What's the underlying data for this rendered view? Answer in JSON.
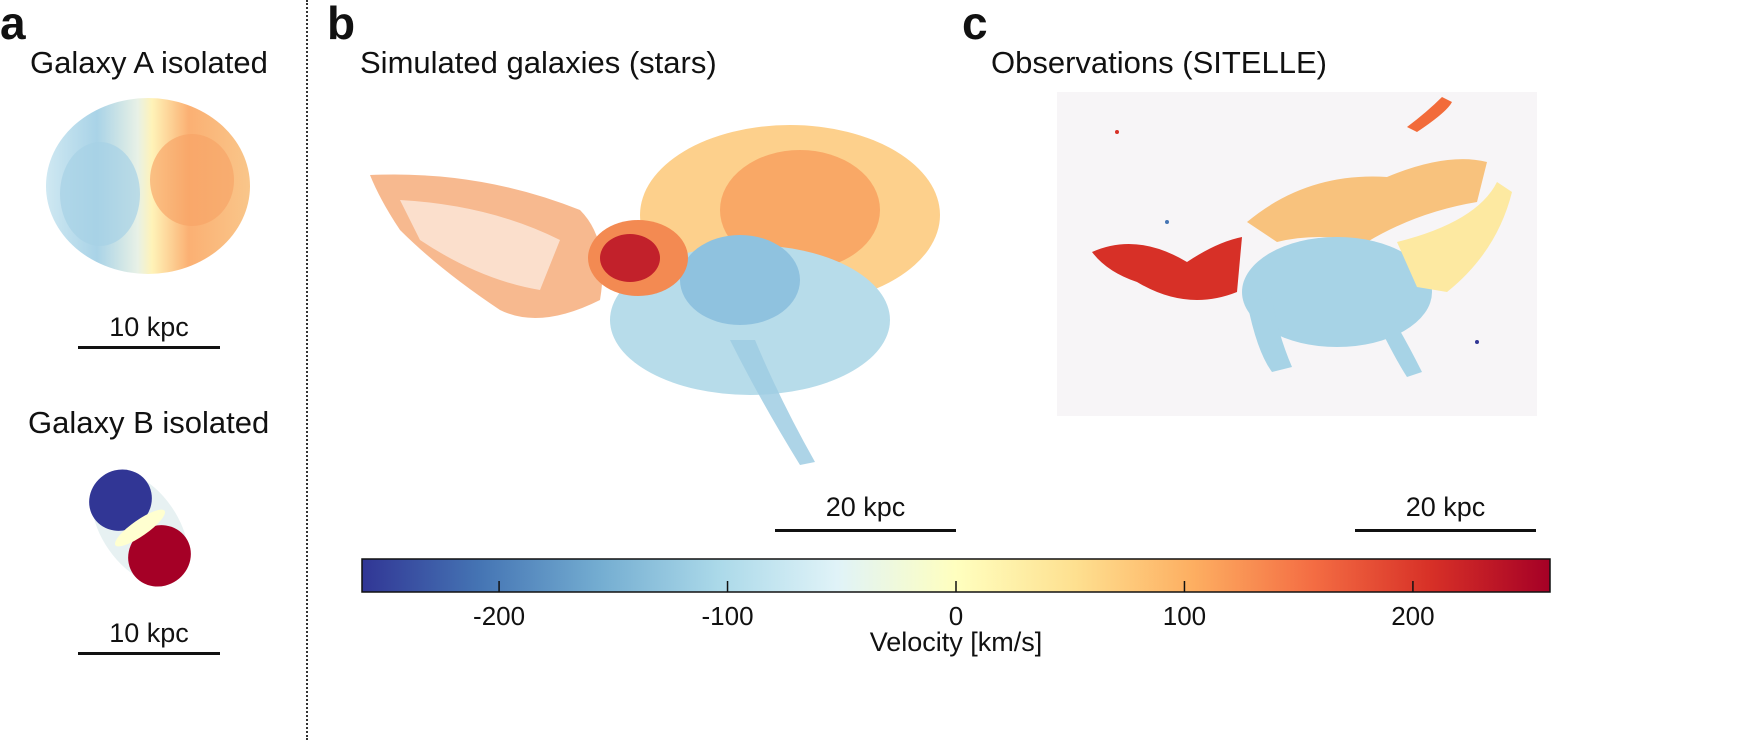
{
  "panels": {
    "a": {
      "letter": "a",
      "galaxy_a_title": "Galaxy A isolated",
      "galaxy_a_scale": "10 kpc",
      "galaxy_b_title": "Galaxy B isolated",
      "galaxy_b_scale": "10 kpc"
    },
    "b": {
      "letter": "b",
      "title": "Simulated galaxies (stars)",
      "scale": "20 kpc"
    },
    "c": {
      "letter": "c",
      "title": "Observations (SITELLE)",
      "scale": "20 kpc"
    }
  },
  "colorbar": {
    "label": "Velocity [km/s]",
    "min": -260,
    "max": 260,
    "ticks": [
      {
        "value": -200,
        "label": "-200"
      },
      {
        "value": -100,
        "label": "-100"
      },
      {
        "value": 0,
        "label": "0"
      },
      {
        "value": 100,
        "label": "100"
      },
      {
        "value": 200,
        "label": "200"
      }
    ],
    "colors": [
      "#313695",
      "#4575b4",
      "#74add1",
      "#abd9e9",
      "#e0f3f8",
      "#ffffbf",
      "#fee090",
      "#fdae61",
      "#f46d43",
      "#d73027",
      "#a50026"
    ]
  }
}
